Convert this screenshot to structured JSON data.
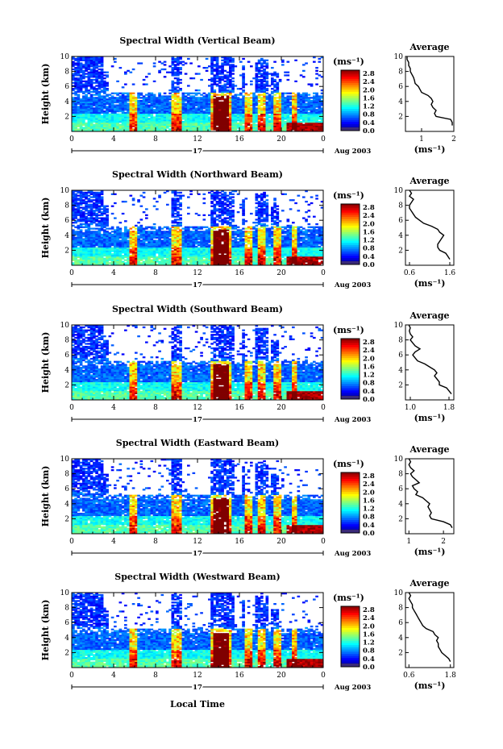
{
  "figure": {
    "panels": [
      {
        "title": "Spectral Width (Vertical Beam)"
      },
      {
        "title": "Spectral Width (Northward Beam)"
      },
      {
        "title": "Spectral Width (Southward Beam)"
      },
      {
        "title": "Spectral Width (Eastward Beam)"
      },
      {
        "title": "Spectral Width (Westward Beam)"
      }
    ],
    "y_label": "Height (km)",
    "x_label": "Local Time",
    "date_label": "17",
    "month_label": "Aug 2003",
    "colorbar_unit": "(ms⁻¹)",
    "profile_title": "Average",
    "profile_unit": "(ms⁻¹)"
  },
  "chart_data": [
    {
      "type": "heatmap",
      "title": "Spectral Width (Vertical Beam)",
      "ylabel": "Height (km)",
      "xlim": [
        0,
        24
      ],
      "ylim": [
        0,
        10
      ],
      "x_ticks": [
        "0",
        "4",
        "8",
        "12",
        "16",
        "20",
        "0"
      ],
      "y_ticks": [
        "2",
        "4",
        "6",
        "8",
        "10"
      ],
      "colorbar": {
        "unit": "(ms⁻¹)",
        "ticks": [
          "2.8",
          "2.4",
          "2.0",
          "1.6",
          "1.2",
          "0.8",
          "0.4",
          "0.0"
        ],
        "range": [
          0,
          2.8
        ]
      },
      "profile": {
        "title": "Average",
        "xlabel": "(ms⁻¹)",
        "x_ticks": [
          "1",
          "2"
        ],
        "xlim": [
          0.5,
          2.0
        ],
        "y": [
          0.8,
          1.2,
          1.6,
          2.0,
          2.4,
          2.8,
          3.2,
          3.6,
          4.0,
          4.4,
          4.8,
          5.2,
          5.6,
          6.0,
          6.4,
          6.8,
          7.2,
          7.6,
          8.0,
          8.4,
          8.8,
          9.2,
          9.6,
          10.0
        ],
        "x": [
          1.95,
          1.95,
          1.9,
          1.45,
          1.4,
          1.45,
          1.35,
          1.3,
          1.35,
          1.3,
          1.2,
          1.0,
          0.95,
          0.9,
          0.8,
          0.78,
          0.75,
          0.7,
          0.65,
          0.65,
          0.6,
          0.6,
          0.55,
          0.55
        ]
      }
    },
    {
      "type": "heatmap",
      "title": "Spectral Width (Northward Beam)",
      "ylabel": "Height (km)",
      "xlim": [
        0,
        24
      ],
      "ylim": [
        0,
        10
      ],
      "x_ticks": [
        "0",
        "4",
        "8",
        "12",
        "16",
        "20",
        "0"
      ],
      "y_ticks": [
        "2",
        "4",
        "6",
        "8",
        "10"
      ],
      "colorbar": {
        "unit": "(ms⁻¹)",
        "ticks": [
          "2.8",
          "2.4",
          "2.0",
          "1.6",
          "1.2",
          "0.8",
          "0.4",
          "0.0"
        ],
        "range": [
          0,
          2.8
        ]
      },
      "profile": {
        "title": "Average",
        "xlabel": "(ms⁻¹)",
        "x_ticks": [
          "0.6",
          "1.6"
        ],
        "xlim": [
          0.5,
          1.7
        ],
        "y": [
          0.8,
          1.2,
          1.6,
          2.0,
          2.4,
          2.8,
          3.2,
          3.6,
          4.0,
          4.4,
          4.8,
          5.2,
          5.6,
          6.0,
          6.4,
          6.8,
          7.2,
          7.6,
          8.0,
          8.4,
          8.8,
          9.2,
          9.6,
          10.0
        ],
        "x": [
          1.6,
          1.55,
          1.5,
          1.35,
          1.3,
          1.3,
          1.35,
          1.4,
          1.45,
          1.35,
          1.3,
          1.15,
          0.95,
          0.85,
          0.75,
          0.7,
          0.65,
          0.6,
          0.6,
          0.65,
          0.7,
          0.6,
          0.65,
          0.6
        ]
      }
    },
    {
      "type": "heatmap",
      "title": "Spectral Width (Southward Beam)",
      "ylabel": "Height (km)",
      "xlim": [
        0,
        24
      ],
      "ylim": [
        0,
        10
      ],
      "x_ticks": [
        "0",
        "4",
        "8",
        "12",
        "16",
        "20",
        "0"
      ],
      "y_ticks": [
        "2",
        "4",
        "6",
        "8",
        "10"
      ],
      "colorbar": {
        "unit": "(ms⁻¹)",
        "ticks": [
          "2.8",
          "2.4",
          "2.0",
          "1.6",
          "1.2",
          "0.8",
          "0.4",
          "0.0"
        ],
        "range": [
          0,
          2.8
        ]
      },
      "profile": {
        "title": "Average",
        "xlabel": "(ms⁻¹)",
        "x_ticks": [
          "1.0",
          "1.8"
        ],
        "xlim": [
          0.9,
          1.9
        ],
        "y": [
          0.8,
          1.2,
          1.6,
          2.0,
          2.4,
          2.8,
          3.2,
          3.6,
          4.0,
          4.4,
          4.8,
          5.2,
          5.6,
          6.0,
          6.4,
          6.8,
          7.2,
          7.6,
          8.0,
          8.4,
          8.8,
          9.2,
          9.6,
          10.0
        ],
        "x": [
          1.85,
          1.8,
          1.75,
          1.6,
          1.6,
          1.55,
          1.5,
          1.55,
          1.5,
          1.4,
          1.3,
          1.15,
          1.1,
          1.05,
          1.1,
          1.2,
          1.1,
          1.05,
          1.0,
          1.05,
          1.0,
          0.98,
          1.0,
          0.97
        ]
      }
    },
    {
      "type": "heatmap",
      "title": "Spectral Width (Eastward Beam)",
      "ylabel": "Height (km)",
      "xlim": [
        0,
        24
      ],
      "ylim": [
        0,
        10
      ],
      "x_ticks": [
        "0",
        "4",
        "8",
        "12",
        "16",
        "20",
        "0"
      ],
      "y_ticks": [
        "2",
        "4",
        "6",
        "8",
        "10"
      ],
      "colorbar": {
        "unit": "(ms⁻¹)",
        "ticks": [
          "2.8",
          "2.4",
          "2.0",
          "1.6",
          "1.2",
          "0.8",
          "0.4",
          "0.0"
        ],
        "range": [
          0,
          2.8
        ]
      },
      "profile": {
        "title": "Average",
        "xlabel": "(ms⁻¹)",
        "x_ticks": [
          "1",
          "2"
        ],
        "xlim": [
          0.9,
          2.3
        ],
        "y": [
          0.8,
          1.2,
          1.6,
          2.0,
          2.4,
          2.8,
          3.2,
          3.6,
          4.0,
          4.4,
          4.8,
          5.2,
          5.6,
          6.0,
          6.4,
          6.8,
          7.2,
          7.6,
          8.0,
          8.4,
          8.8,
          9.2,
          9.6,
          10.0
        ],
        "x": [
          2.25,
          2.2,
          2.0,
          1.65,
          1.6,
          1.65,
          1.6,
          1.55,
          1.6,
          1.5,
          1.4,
          1.2,
          1.25,
          1.15,
          1.1,
          1.3,
          1.2,
          1.1,
          1.05,
          1.15,
          1.05,
          1.0,
          1.05,
          1.0
        ]
      }
    },
    {
      "type": "heatmap",
      "title": "Spectral Width (Westward Beam)",
      "ylabel": "Height (km)",
      "xlim": [
        0,
        24
      ],
      "ylim": [
        0,
        10
      ],
      "x_ticks": [
        "0",
        "4",
        "8",
        "12",
        "16",
        "20",
        "0"
      ],
      "y_ticks": [
        "2",
        "4",
        "6",
        "8",
        "10"
      ],
      "colorbar": {
        "unit": "(ms⁻¹)",
        "ticks": [
          "2.8",
          "2.4",
          "2.0",
          "1.6",
          "1.2",
          "0.8",
          "0.4",
          "0.0"
        ],
        "range": [
          0,
          2.8
        ]
      },
      "profile": {
        "title": "Average",
        "xlabel": "(ms⁻¹)",
        "x_ticks": [
          "0.6",
          "1.8"
        ],
        "xlim": [
          0.5,
          1.9
        ],
        "y": [
          0.8,
          1.2,
          1.6,
          2.0,
          2.4,
          2.8,
          3.2,
          3.6,
          4.0,
          4.4,
          4.8,
          5.2,
          5.6,
          6.0,
          6.4,
          6.8,
          7.2,
          7.6,
          8.0,
          8.4,
          8.8,
          9.2,
          9.6,
          10.0
        ],
        "x": [
          1.8,
          1.75,
          1.65,
          1.55,
          1.5,
          1.45,
          1.45,
          1.4,
          1.45,
          1.35,
          1.3,
          1.1,
          1.0,
          0.95,
          0.9,
          0.85,
          0.8,
          0.75,
          0.7,
          0.7,
          0.65,
          0.6,
          0.65,
          0.6
        ]
      }
    }
  ]
}
